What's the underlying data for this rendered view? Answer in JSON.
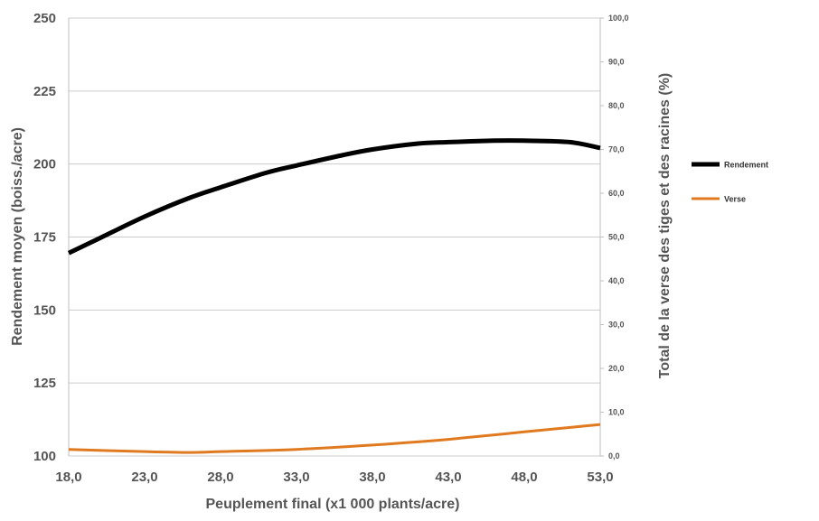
{
  "chart_data": {
    "type": "line",
    "xlabel": "Peuplement final (x1 000 plants/acre)",
    "ylabel": "Rendement moyen (boiss./acre)",
    "y2label": "Total de la verse des tiges et des racines (%)",
    "x_ticks": [
      "18,0",
      "23,0",
      "28,0",
      "33,0",
      "38,0",
      "43,0",
      "48,0",
      "53,0"
    ],
    "y_ticks": [
      "100",
      "125",
      "150",
      "175",
      "200",
      "225",
      "250"
    ],
    "y2_ticks": [
      "0,0",
      "10,0",
      "20,0",
      "30,0",
      "40,0",
      "50,0",
      "60,0",
      "70,0",
      "80,0",
      "90,0",
      "100,0"
    ],
    "xlim": [
      18,
      53
    ],
    "ylim": [
      100,
      250
    ],
    "y2lim": [
      0,
      100
    ],
    "grid": true,
    "legend_position": "right",
    "series": [
      {
        "name": "Rendement",
        "axis": "left",
        "color": "#000000",
        "x": [
          18,
          20,
          23,
          26,
          28,
          31,
          33,
          36,
          38,
          41,
          43,
          46,
          48,
          51,
          53
        ],
        "values": [
          169.5,
          174.5,
          182,
          188.5,
          192,
          197,
          199.5,
          203,
          205,
          207,
          207.5,
          208,
          208,
          207.5,
          205.5
        ]
      },
      {
        "name": "Verse",
        "axis": "right",
        "color": "#e07a20",
        "x": [
          18,
          23,
          26,
          28,
          33,
          38,
          43,
          48,
          53
        ],
        "values": [
          1.5,
          1.0,
          0.8,
          1.0,
          1.5,
          2.5,
          3.8,
          5.5,
          7.2
        ]
      }
    ]
  }
}
